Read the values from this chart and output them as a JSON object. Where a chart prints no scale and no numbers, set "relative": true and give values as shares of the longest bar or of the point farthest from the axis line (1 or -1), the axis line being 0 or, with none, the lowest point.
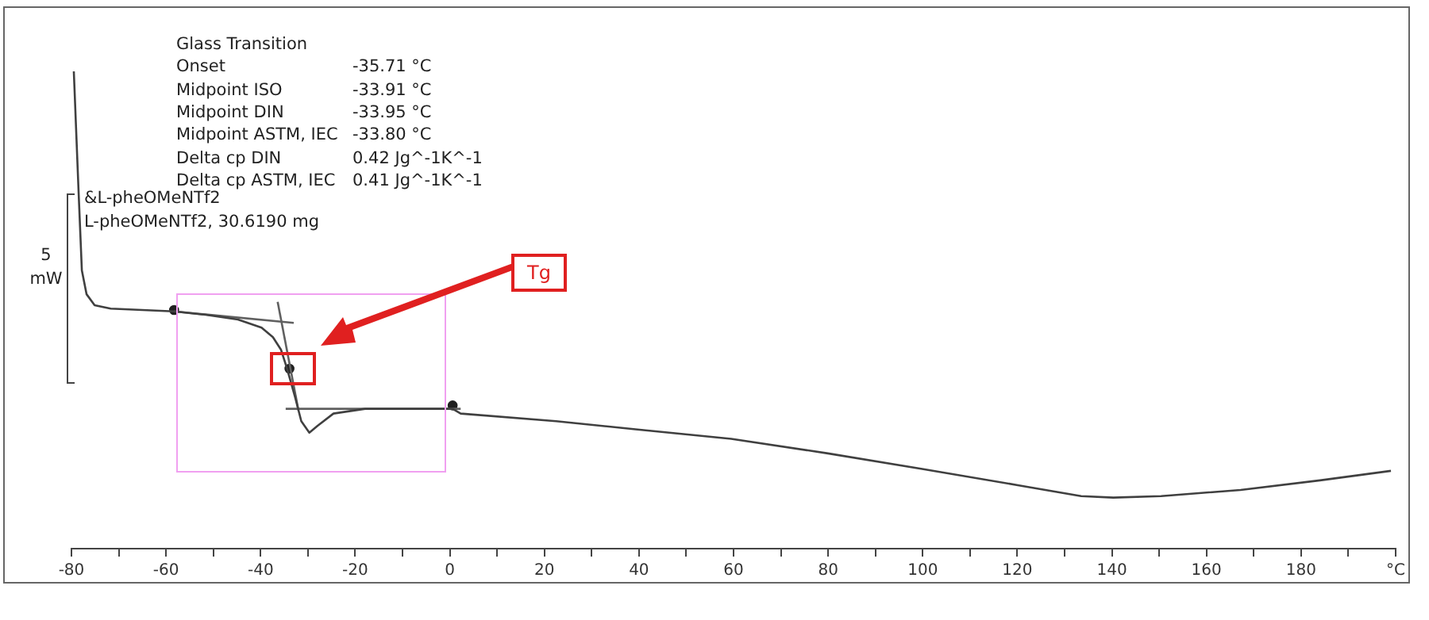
{
  "chart_data": {
    "type": "line",
    "relative": true,
    "legend": false,
    "grid": false,
    "marker": "none",
    "line_style": "solid",
    "xlim": [
      -80,
      200
    ],
    "xticks": [
      -80,
      {
        "value": -70,
        "label": null
      },
      -60,
      {
        "value": -50,
        "label": null
      },
      -40,
      {
        "value": -30,
        "label": null
      },
      -20,
      {
        "value": -10,
        "label": null
      },
      0,
      {
        "value": 10,
        "label": null
      },
      20,
      {
        "value": 30,
        "label": null
      },
      40,
      {
        "value": 50,
        "label": null
      },
      60,
      {
        "value": 70,
        "label": null
      },
      80,
      {
        "value": 90,
        "label": null
      },
      100,
      {
        "value": 110,
        "label": null
      },
      120,
      {
        "value": 130,
        "label": null
      },
      140,
      {
        "value": 150,
        "label": null
      },
      160,
      {
        "value": 170,
        "label": null
      },
      180,
      {
        "value": 190,
        "label": null
      },
      {
        "value": 200,
        "label": "°C"
      }
    ],
    "annotations": [
      "Glass Transition",
      "Onset",
      "-35.71 °C",
      "Midpoint ISO",
      "-33.91 °C",
      "Midpoint DIN",
      "-33.95 °C",
      "Midpoint ASTM, IEC",
      "-33.80 °C",
      "Delta cp DIN",
      "0.42 Jg^-1K^-1",
      "Delta cp ASTM, IEC",
      "0.41 Jg^-1K^-1",
      "&L-pheOMeNTf2",
      "L-pheOMeNTf2, 30.6190 mg",
      "5 mW",
      "Tg"
    ],
    "series": [
      {
        "color": "#404040",
        "x": [
          -79.5,
          -78.5,
          -77.8,
          -76.8,
          -75.1,
          -71.7,
          -65.0,
          -58.3,
          -51.6,
          -44.8,
          -39.8,
          -37.4,
          -35.7,
          -34.4,
          -32.7,
          -31.4,
          -29.7,
          -28.0,
          -24.6,
          -17.9,
          -7.8,
          0.6,
          2.3,
          22.5,
          39.3,
          59.5,
          79.7,
          99.9,
          120.1,
          133.5,
          140.3,
          150.4,
          167.2,
          184.0,
          199
        ],
        "values": [
          1.0,
          0.75,
          0.583,
          0.533,
          0.51,
          0.503,
          0.5,
          0.497,
          0.49,
          0.48,
          0.463,
          0.443,
          0.417,
          0.377,
          0.317,
          0.267,
          0.243,
          0.257,
          0.283,
          0.293,
          0.293,
          0.293,
          0.283,
          0.267,
          0.25,
          0.23,
          0.2,
          0.167,
          0.133,
          0.11,
          0.107,
          0.11,
          0.123,
          0.143,
          0.163
        ]
      },
      {
        "color": "#606060",
        "x": [
          -58.3,
          -33.0
        ],
        "values": [
          0.497,
          0.473
        ]
      },
      {
        "color": "#606060",
        "x": [
          -36.4,
          -32.0
        ],
        "values": [
          0.517,
          0.29
        ]
      },
      {
        "color": "#606060",
        "x": [
          -34.7,
          2.3
        ],
        "values": [
          0.293,
          0.293
        ]
      },
      {
        "type": "scatter",
        "marker": "circle",
        "color": "#202020",
        "x": [
          -58.3,
          -33.9,
          0.6
        ],
        "values": [
          0.5,
          0.377,
          0.3
        ]
      }
    ]
  }
}
